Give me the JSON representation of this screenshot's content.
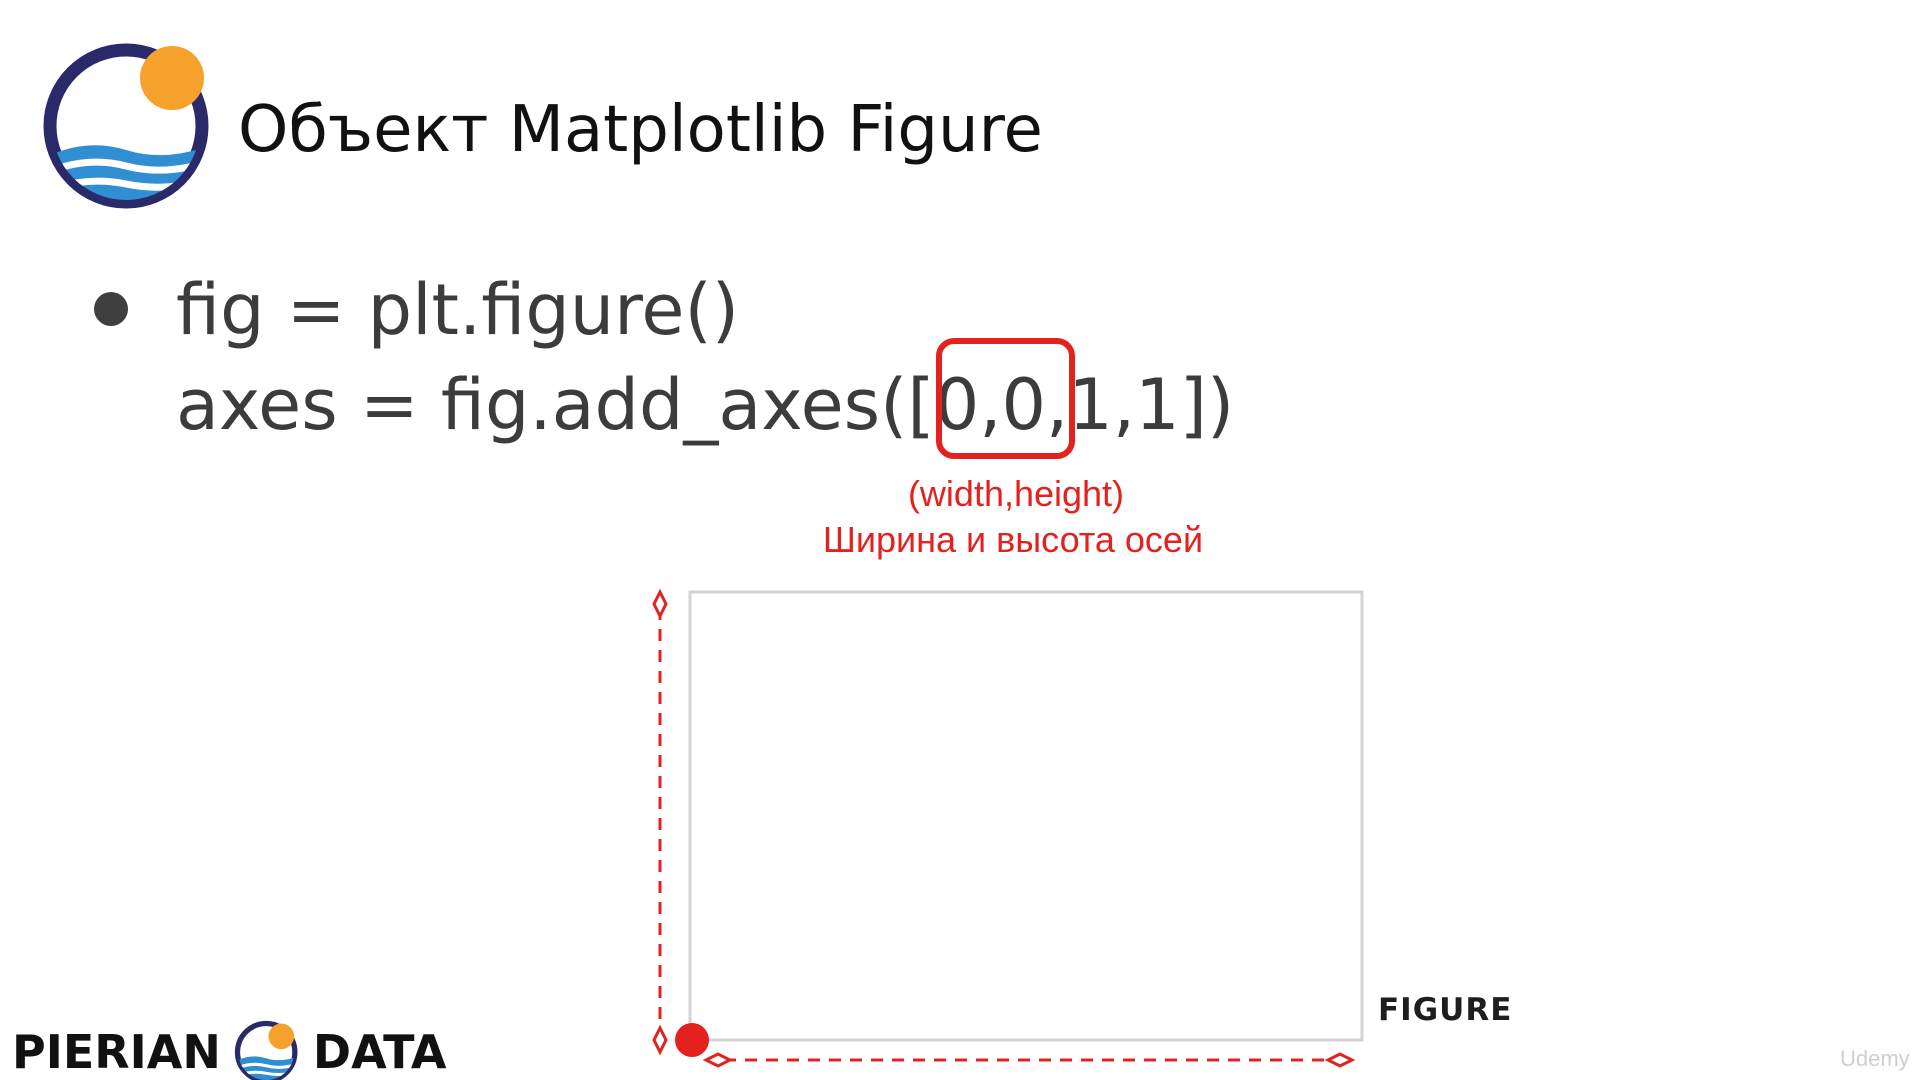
{
  "slide": {
    "title": "Объект Matplotlib Figure",
    "code_line_1": "fig = plt.figure()",
    "code_line_2": "axes = fig.add_axes([0,0,1,1])",
    "annotation_en": "(width,height)",
    "annotation_ru": "Ширина и высота осей",
    "figure_label": "FIGURE"
  },
  "brand": {
    "left_word": "PIERIAN",
    "right_word": "DATA",
    "watermark": "Udemy"
  },
  "colors": {
    "accent_red": "#e3221f",
    "logo_navy": "#2a2a6a",
    "logo_blue": "#2f8fd2",
    "logo_orange": "#f6a12c",
    "box_border": "#d4d4d4"
  }
}
